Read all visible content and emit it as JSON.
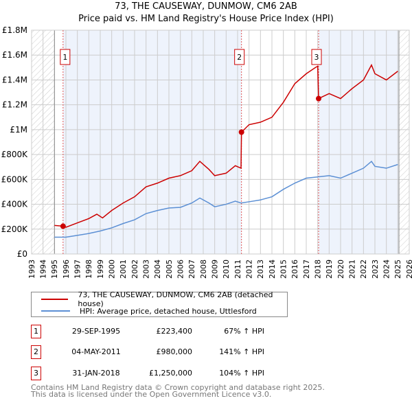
{
  "colors": {
    "property": "#cc0000",
    "hpi": "#5b8fd4",
    "shade": "#eef3fc"
  },
  "chart_data": {
    "type": "line",
    "title": "73, THE CAUSEWAY, DUNMOW, CM6 2AB",
    "subtitle": "Price paid vs. HM Land Registry's House Price Index (HPI)",
    "xlim": [
      1993,
      2026
    ],
    "ylim": [
      0,
      1800000
    ],
    "x_ticks": [
      "1993",
      "1994",
      "1995",
      "1996",
      "1997",
      "1998",
      "1999",
      "2000",
      "2001",
      "2002",
      "2003",
      "2004",
      "2005",
      "2006",
      "2007",
      "2008",
      "2009",
      "2010",
      "2011",
      "2012",
      "2013",
      "2014",
      "2015",
      "2016",
      "2017",
      "2018",
      "2019",
      "2020",
      "2021",
      "2022",
      "2023",
      "2024",
      "2025",
      "2026"
    ],
    "y_ticks": [
      {
        "v": 0,
        "label": "£0"
      },
      {
        "v": 200000,
        "label": "£200K"
      },
      {
        "v": 400000,
        "label": "£400K"
      },
      {
        "v": 600000,
        "label": "£600K"
      },
      {
        "v": 800000,
        "label": "£800K"
      },
      {
        "v": 1000000,
        "label": "£1M"
      },
      {
        "v": 1200000,
        "label": "£1.2M"
      },
      {
        "v": 1400000,
        "label": "£1.4M"
      },
      {
        "v": 1600000,
        "label": "£1.6M"
      },
      {
        "v": 1800000,
        "label": "£1.8M"
      }
    ],
    "grid": true,
    "series": [
      {
        "name": "73, THE CAUSEWAY, DUNMOW, CM6 2AB (detached house)",
        "color": "#cc0000",
        "x": [
          1995.0,
          1995.75,
          1996.0,
          1997.0,
          1998.0,
          1998.7,
          1999.2,
          2000.0,
          2001.0,
          2002.0,
          2003.0,
          2004.0,
          2005.0,
          2006.0,
          2007.0,
          2007.7,
          2008.5,
          2009.0,
          2010.0,
          2010.8,
          2011.3,
          2011.34,
          2012.0,
          2013.0,
          2014.0,
          2015.0,
          2016.0,
          2017.0,
          2017.8,
          2018.0,
          2018.08,
          2019.0,
          2020.0,
          2021.0,
          2022.0,
          2022.7,
          2023.0,
          2024.0,
          2025.0
        ],
        "y": [
          230000,
          223400,
          215000,
          250000,
          285000,
          320000,
          290000,
          350000,
          410000,
          460000,
          540000,
          570000,
          610000,
          630000,
          670000,
          745000,
          680000,
          630000,
          650000,
          710000,
          690000,
          980000,
          1040000,
          1060000,
          1100000,
          1220000,
          1370000,
          1450000,
          1500000,
          1510000,
          1250000,
          1290000,
          1250000,
          1330000,
          1400000,
          1520000,
          1450000,
          1400000,
          1470000
        ]
      },
      {
        "name": "HPI: Average price, detached house, Uttlesford",
        "color": "#5b8fd4",
        "x": [
          1995.0,
          1996.0,
          1997.0,
          1998.0,
          1999.0,
          2000.0,
          2001.0,
          2002.0,
          2003.0,
          2004.0,
          2005.0,
          2006.0,
          2007.0,
          2007.7,
          2008.5,
          2009.0,
          2010.0,
          2010.8,
          2011.3,
          2012.0,
          2013.0,
          2014.0,
          2015.0,
          2016.0,
          2017.0,
          2018.0,
          2019.0,
          2020.0,
          2021.0,
          2022.0,
          2022.7,
          2023.0,
          2024.0,
          2025.0
        ],
        "y": [
          135000,
          135000,
          150000,
          165000,
          185000,
          210000,
          245000,
          275000,
          325000,
          350000,
          370000,
          375000,
          410000,
          450000,
          410000,
          380000,
          400000,
          425000,
          410000,
          420000,
          435000,
          460000,
          520000,
          570000,
          610000,
          620000,
          630000,
          610000,
          650000,
          690000,
          745000,
          705000,
          690000,
          720000
        ]
      }
    ],
    "sales": [
      {
        "label": "1",
        "x": 1995.75,
        "y": 223400
      },
      {
        "label": "2",
        "x": 2011.34,
        "y": 980000
      },
      {
        "label": "3",
        "x": 2018.08,
        "y": 1250000
      }
    ],
    "data_end": 2025.1
  },
  "legend": {
    "property": "73, THE CAUSEWAY, DUNMOW, CM6 2AB (detached house)",
    "hpi": "HPI: Average price, detached house, Uttlesford"
  },
  "transactions": [
    {
      "num": "1",
      "date": "29-SEP-1995",
      "price": "£223,400",
      "hpi": "67% ↑ HPI"
    },
    {
      "num": "2",
      "date": "04-MAY-2011",
      "price": "£980,000",
      "hpi": "141% ↑ HPI"
    },
    {
      "num": "3",
      "date": "31-JAN-2018",
      "price": "£1,250,000",
      "hpi": "104% ↑ HPI"
    }
  ],
  "footer": {
    "line1": "Contains HM Land Registry data © Crown copyright and database right 2025.",
    "line2": "This data is licensed under the Open Government Licence v3.0."
  }
}
